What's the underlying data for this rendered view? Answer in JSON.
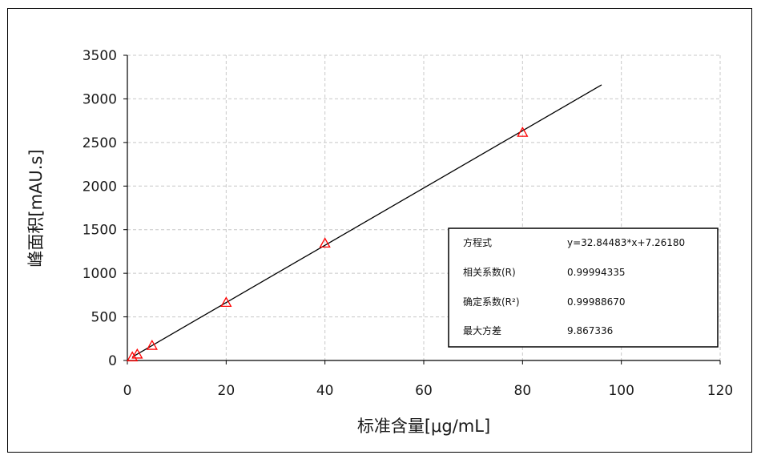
{
  "chart_data": {
    "type": "scatter",
    "xlabel": "标准含量[μg/mL]",
    "ylabel": "峰面积[mAU.s]",
    "xlim": [
      0,
      120
    ],
    "ylim": [
      0,
      3500
    ],
    "x_ticks": [
      "0",
      "20",
      "40",
      "60",
      "80",
      "100",
      "120"
    ],
    "y_ticks": [
      "0",
      "500",
      "1000",
      "1500",
      "2000",
      "2500",
      "3000",
      "3500"
    ],
    "grid": true,
    "points": [
      {
        "x": 1,
        "y": 40
      },
      {
        "x": 2,
        "y": 72
      },
      {
        "x": 5,
        "y": 172
      },
      {
        "x": 20,
        "y": 665
      },
      {
        "x": 40,
        "y": 1345
      },
      {
        "x": 80,
        "y": 2615
      }
    ],
    "fit_line": {
      "slope": 32.84483,
      "intercept": 7.2618,
      "x_start": 1,
      "x_end": 96
    },
    "marker": "triangle",
    "marker_color": "#ff0000",
    "line_color": "#000000",
    "grid_color": "#c8c8c8",
    "legend_placement": "bottom-right",
    "stats": [
      {
        "label": "方程式",
        "value": "y=32.84483*x+7.26180"
      },
      {
        "label": "相关系数(R)",
        "value": "0.99994335"
      },
      {
        "label": "确定系数(R²)",
        "value": "0.99988670"
      },
      {
        "label": "最大方差",
        "value": "9.867336"
      }
    ]
  }
}
